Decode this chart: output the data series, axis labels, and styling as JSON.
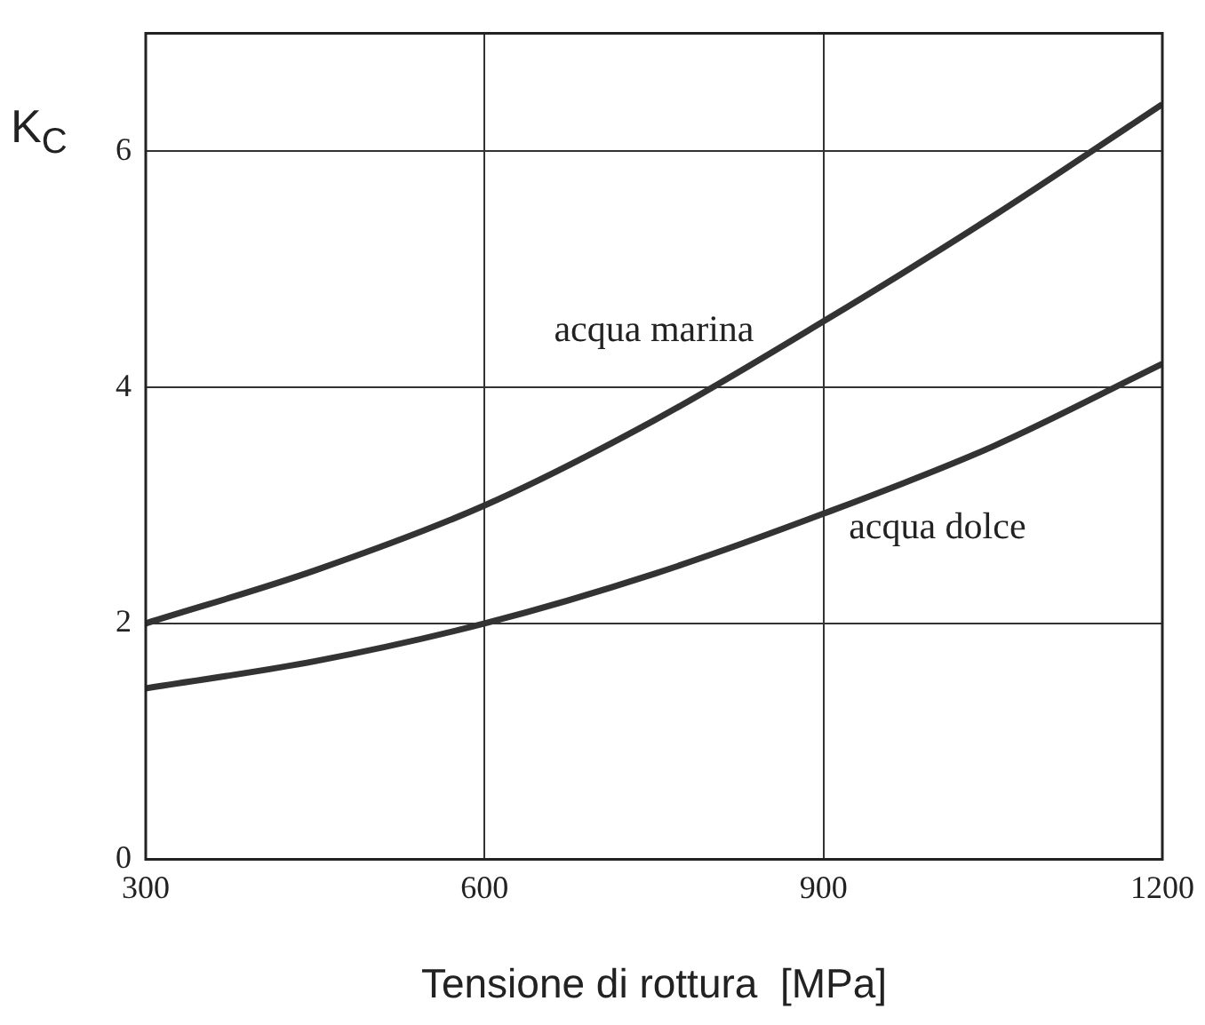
{
  "chart_data": {
    "type": "line",
    "xlabel": "Tensione di rottura  [MPa]",
    "ylabel": "K$_{C}$",
    "xlim": [
      300,
      1200
    ],
    "xticks": [
      300,
      600,
      900,
      1200
    ],
    "ylim": [
      0,
      7
    ],
    "yticks": [
      0,
      2,
      4,
      6
    ],
    "grid": true,
    "legend": false,
    "marker": "none",
    "line_style": "solid",
    "series": [
      {
        "name": "acqua marina",
        "color": "#333333",
        "x": [
          300,
          450,
          600,
          750,
          900,
          1050,
          1200
        ],
        "values": [
          2.0,
          2.45,
          3.0,
          3.72,
          4.56,
          5.45,
          6.4
        ]
      },
      {
        "name": "acqua dolce",
        "color": "#333333",
        "x": [
          300,
          450,
          600,
          750,
          900,
          1050,
          1200
        ],
        "values": [
          1.45,
          1.68,
          2.0,
          2.42,
          2.93,
          3.5,
          4.2
        ]
      }
    ]
  }
}
